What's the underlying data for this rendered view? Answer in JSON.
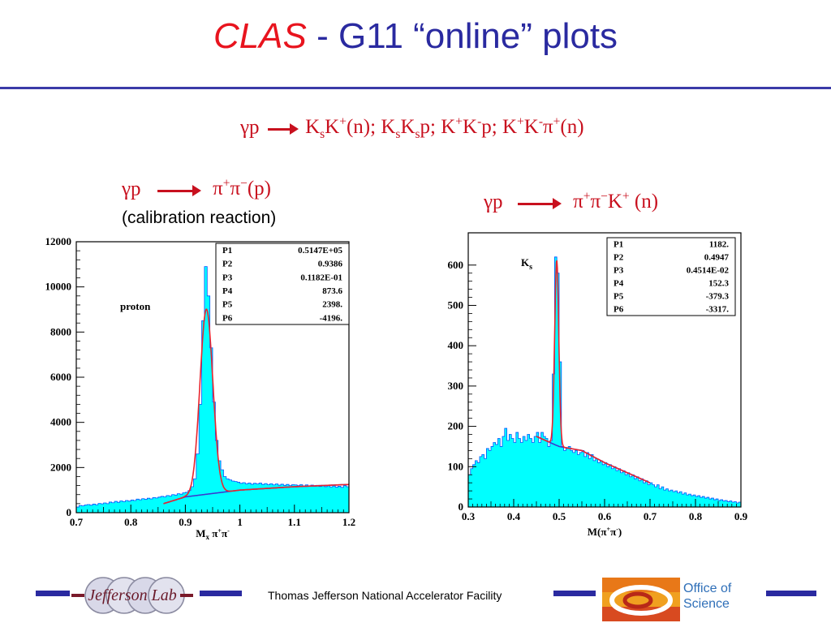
{
  "title": {
    "clas": "CLAS",
    "dash": "-",
    "rest": "G11 “online” plots"
  },
  "reactions": {
    "top": {
      "lhs": "γp",
      "rhs_html": "K<sub>s</sub>K<sup>+</sup>(n); K<sub>s</sub>K<sub>s</sub>p; K<sup>+</sup>K<sup>-</sup>p; K<sup>+</sup>K<sup>-</sup>π<sup>+</sup>(n)"
    },
    "left": {
      "lhs": "γp",
      "rhs_html": "π<sup>+</sup>π<sup>−</sup>(p)",
      "note": "(calibration reaction)"
    },
    "right": {
      "lhs": "γp",
      "rhs_html": "π<sup>+</sup>π<sup>−</sup>K<sup>+</sup> (n)"
    }
  },
  "footer": {
    "lab_logo_text": "Jefferson Lab",
    "center_text": "Thomas Jefferson National Accelerator Facility",
    "office_line1": "Office of",
    "office_line2": "Science"
  },
  "colors": {
    "hist_fill": "#00ffff",
    "fit_red": "#e8262e",
    "fit_blue": "#3a3ad0",
    "clas_red": "#e8141e",
    "title_blue": "#2a2aa0"
  },
  "chart_data": [
    {
      "type": "histogram",
      "xlabel_html": "M<tspan font-size='9' dy='3'>x</tspan><tspan dy='-3'> π</tspan><tspan font-size='8' dy='-5'>+</tspan><tspan dy='5'>π</tspan><tspan font-size='8' dy='-5'>-</tspan>",
      "xlim": [
        0.7,
        1.2
      ],
      "ylim": [
        0,
        12000
      ],
      "xticks": [
        0.7,
        0.8,
        0.9,
        1,
        1.1,
        1.2
      ],
      "yticks": [
        0,
        2000,
        4000,
        6000,
        8000,
        10000,
        12000
      ],
      "annotation": "proton",
      "fit_params": [
        {
          "name": "P1",
          "value": "0.5147E+05"
        },
        {
          "name": "P2",
          "value": "0.9386"
        },
        {
          "name": "P3",
          "value": "0.1182E-01"
        },
        {
          "name": "P4",
          "value": "873.6"
        },
        {
          "name": "P5",
          "value": "2398."
        },
        {
          "name": "P6",
          "value": "-4196."
        }
      ],
      "bins": [
        [
          0.7,
          250
        ],
        [
          0.705,
          320
        ],
        [
          0.71,
          300
        ],
        [
          0.715,
          340
        ],
        [
          0.72,
          360
        ],
        [
          0.725,
          330
        ],
        [
          0.73,
          380
        ],
        [
          0.735,
          350
        ],
        [
          0.74,
          410
        ],
        [
          0.745,
          390
        ],
        [
          0.75,
          430
        ],
        [
          0.755,
          400
        ],
        [
          0.76,
          470
        ],
        [
          0.765,
          440
        ],
        [
          0.77,
          500
        ],
        [
          0.775,
          460
        ],
        [
          0.78,
          520
        ],
        [
          0.785,
          490
        ],
        [
          0.79,
          540
        ],
        [
          0.795,
          510
        ],
        [
          0.8,
          560
        ],
        [
          0.805,
          540
        ],
        [
          0.81,
          600
        ],
        [
          0.815,
          570
        ],
        [
          0.82,
          620
        ],
        [
          0.825,
          590
        ],
        [
          0.83,
          640
        ],
        [
          0.835,
          610
        ],
        [
          0.84,
          670
        ],
        [
          0.845,
          650
        ],
        [
          0.85,
          690
        ],
        [
          0.855,
          720
        ],
        [
          0.86,
          700
        ],
        [
          0.865,
          760
        ],
        [
          0.87,
          740
        ],
        [
          0.875,
          800
        ],
        [
          0.88,
          780
        ],
        [
          0.885,
          840
        ],
        [
          0.89,
          820
        ],
        [
          0.895,
          880
        ],
        [
          0.9,
          900
        ],
        [
          0.905,
          980
        ],
        [
          0.91,
          1150
        ],
        [
          0.915,
          1500
        ],
        [
          0.92,
          2600
        ],
        [
          0.925,
          4800
        ],
        [
          0.93,
          8500
        ],
        [
          0.935,
          10900
        ],
        [
          0.94,
          9600
        ],
        [
          0.945,
          7300
        ],
        [
          0.95,
          4900
        ],
        [
          0.955,
          3200
        ],
        [
          0.96,
          2300
        ],
        [
          0.965,
          1900
        ],
        [
          0.97,
          1600
        ],
        [
          0.975,
          1500
        ],
        [
          0.98,
          1450
        ],
        [
          0.985,
          1400
        ],
        [
          0.99,
          1380
        ],
        [
          0.995,
          1350
        ],
        [
          1.0,
          1300
        ],
        [
          1.005,
          1330
        ],
        [
          1.01,
          1280
        ],
        [
          1.015,
          1310
        ],
        [
          1.02,
          1260
        ],
        [
          1.025,
          1300
        ],
        [
          1.03,
          1270
        ],
        [
          1.035,
          1310
        ],
        [
          1.04,
          1250
        ],
        [
          1.045,
          1290
        ],
        [
          1.05,
          1240
        ],
        [
          1.055,
          1280
        ],
        [
          1.06,
          1230
        ],
        [
          1.065,
          1270
        ],
        [
          1.07,
          1220
        ],
        [
          1.075,
          1260
        ],
        [
          1.08,
          1210
        ],
        [
          1.085,
          1250
        ],
        [
          1.09,
          1200
        ],
        [
          1.095,
          1240
        ],
        [
          1.1,
          1230
        ],
        [
          1.105,
          1200
        ],
        [
          1.11,
          1240
        ],
        [
          1.115,
          1190
        ],
        [
          1.12,
          1230
        ],
        [
          1.125,
          1180
        ],
        [
          1.13,
          1220
        ],
        [
          1.135,
          1170
        ],
        [
          1.14,
          1210
        ],
        [
          1.145,
          1160
        ],
        [
          1.15,
          1200
        ],
        [
          1.155,
          1150
        ],
        [
          1.16,
          1190
        ],
        [
          1.165,
          1140
        ],
        [
          1.17,
          1180
        ],
        [
          1.175,
          1130
        ],
        [
          1.18,
          1170
        ],
        [
          1.185,
          1120
        ],
        [
          1.19,
          1200
        ],
        [
          1.195,
          1150
        ]
      ],
      "bin_width": 0.005,
      "fit_gauss": {
        "amp": 8200,
        "mean": 0.9386,
        "sigma": 0.0118
      },
      "fit_background": [
        [
          0.86,
          400
        ],
        [
          0.9,
          700
        ],
        [
          1.0,
          1000
        ],
        [
          1.1,
          1150
        ],
        [
          1.2,
          1250
        ]
      ],
      "fit_range": [
        0.86,
        1.2
      ]
    },
    {
      "type": "histogram",
      "xlabel_html": "M(π<tspan font-size='8' dy='-5'>+</tspan><tspan dy='5'>π</tspan><tspan font-size='8' dy='-5'>-</tspan><tspan dy='5'>)</tspan>",
      "xlim": [
        0.3,
        0.9
      ],
      "ylim": [
        0,
        680
      ],
      "xticks": [
        0.3,
        0.4,
        0.5,
        0.6,
        0.7,
        0.8,
        0.9
      ],
      "yticks": [
        0,
        100,
        200,
        300,
        400,
        500,
        600
      ],
      "annotation_html": "K<tspan font-size='10' dy='4'>s</tspan>",
      "fit_params": [
        {
          "name": "P1",
          "value": "1182."
        },
        {
          "name": "P2",
          "value": "0.4947"
        },
        {
          "name": "P3",
          "value": "0.4514E-02"
        },
        {
          "name": "P4",
          "value": "152.3"
        },
        {
          "name": "P5",
          "value": "-379.3"
        },
        {
          "name": "P6",
          "value": "-3317."
        }
      ],
      "bins": [
        [
          0.3,
          80
        ],
        [
          0.305,
          95
        ],
        [
          0.31,
          105
        ],
        [
          0.315,
          115
        ],
        [
          0.32,
          110
        ],
        [
          0.325,
          125
        ],
        [
          0.33,
          130
        ],
        [
          0.335,
          120
        ],
        [
          0.34,
          145
        ],
        [
          0.345,
          140
        ],
        [
          0.35,
          150
        ],
        [
          0.355,
          160
        ],
        [
          0.36,
          155
        ],
        [
          0.365,
          170
        ],
        [
          0.37,
          150
        ],
        [
          0.375,
          175
        ],
        [
          0.38,
          195
        ],
        [
          0.385,
          165
        ],
        [
          0.39,
          180
        ],
        [
          0.395,
          170
        ],
        [
          0.4,
          160
        ],
        [
          0.405,
          185
        ],
        [
          0.41,
          170
        ],
        [
          0.415,
          160
        ],
        [
          0.42,
          175
        ],
        [
          0.425,
          165
        ],
        [
          0.43,
          180
        ],
        [
          0.435,
          170
        ],
        [
          0.44,
          160
        ],
        [
          0.445,
          175
        ],
        [
          0.45,
          185
        ],
        [
          0.455,
          160
        ],
        [
          0.46,
          185
        ],
        [
          0.465,
          175
        ],
        [
          0.47,
          170
        ],
        [
          0.475,
          150
        ],
        [
          0.48,
          165
        ],
        [
          0.485,
          330
        ],
        [
          0.49,
          620
        ],
        [
          0.495,
          580
        ],
        [
          0.5,
          360
        ],
        [
          0.505,
          150
        ],
        [
          0.51,
          140
        ],
        [
          0.515,
          145
        ],
        [
          0.52,
          150
        ],
        [
          0.525,
          140
        ],
        [
          0.53,
          135
        ],
        [
          0.535,
          140
        ],
        [
          0.54,
          130
        ],
        [
          0.545,
          135
        ],
        [
          0.55,
          140
        ],
        [
          0.555,
          125
        ],
        [
          0.56,
          135
        ],
        [
          0.565,
          120
        ],
        [
          0.57,
          130
        ],
        [
          0.575,
          115
        ],
        [
          0.58,
          120
        ],
        [
          0.585,
          110
        ],
        [
          0.59,
          115
        ],
        [
          0.595,
          105
        ],
        [
          0.6,
          110
        ],
        [
          0.605,
          100
        ],
        [
          0.61,
          105
        ],
        [
          0.615,
          95
        ],
        [
          0.62,
          100
        ],
        [
          0.625,
          90
        ],
        [
          0.63,
          95
        ],
        [
          0.635,
          85
        ],
        [
          0.64,
          90
        ],
        [
          0.645,
          80
        ],
        [
          0.65,
          85
        ],
        [
          0.655,
          75
        ],
        [
          0.66,
          80
        ],
        [
          0.665,
          70
        ],
        [
          0.67,
          75
        ],
        [
          0.675,
          65
        ],
        [
          0.68,
          70
        ],
        [
          0.685,
          60
        ],
        [
          0.69,
          65
        ],
        [
          0.695,
          55
        ],
        [
          0.7,
          60
        ],
        [
          0.705,
          55
        ],
        [
          0.71,
          50
        ],
        [
          0.715,
          55
        ],
        [
          0.72,
          45
        ],
        [
          0.725,
          50
        ],
        [
          0.73,
          42
        ],
        [
          0.735,
          45
        ],
        [
          0.74,
          40
        ],
        [
          0.745,
          42
        ],
        [
          0.75,
          38
        ],
        [
          0.755,
          40
        ],
        [
          0.76,
          35
        ],
        [
          0.765,
          38
        ],
        [
          0.77,
          32
        ],
        [
          0.775,
          35
        ],
        [
          0.78,
          30
        ],
        [
          0.785,
          32
        ],
        [
          0.79,
          28
        ],
        [
          0.795,
          30
        ],
        [
          0.8,
          26
        ],
        [
          0.805,
          28
        ],
        [
          0.81,
          24
        ],
        [
          0.815,
          26
        ],
        [
          0.82,
          22
        ],
        [
          0.825,
          24
        ],
        [
          0.83,
          20
        ],
        [
          0.835,
          22
        ],
        [
          0.84,
          18
        ],
        [
          0.845,
          20
        ],
        [
          0.85,
          16
        ],
        [
          0.855,
          18
        ],
        [
          0.86,
          15
        ],
        [
          0.865,
          16
        ],
        [
          0.87,
          13
        ],
        [
          0.875,
          15
        ],
        [
          0.88,
          12
        ],
        [
          0.885,
          13
        ],
        [
          0.89,
          10
        ],
        [
          0.895,
          12
        ]
      ],
      "bin_width": 0.005,
      "fit_gauss": {
        "amp": 460,
        "mean": 0.4947,
        "sigma": 0.0045
      },
      "fit_background": [
        [
          0.45,
          175
        ],
        [
          0.5,
          150
        ],
        [
          0.55,
          140
        ],
        [
          0.6,
          110
        ],
        [
          0.65,
          85
        ],
        [
          0.7,
          60
        ]
      ],
      "fit_range": [
        0.45,
        0.7
      ]
    }
  ]
}
